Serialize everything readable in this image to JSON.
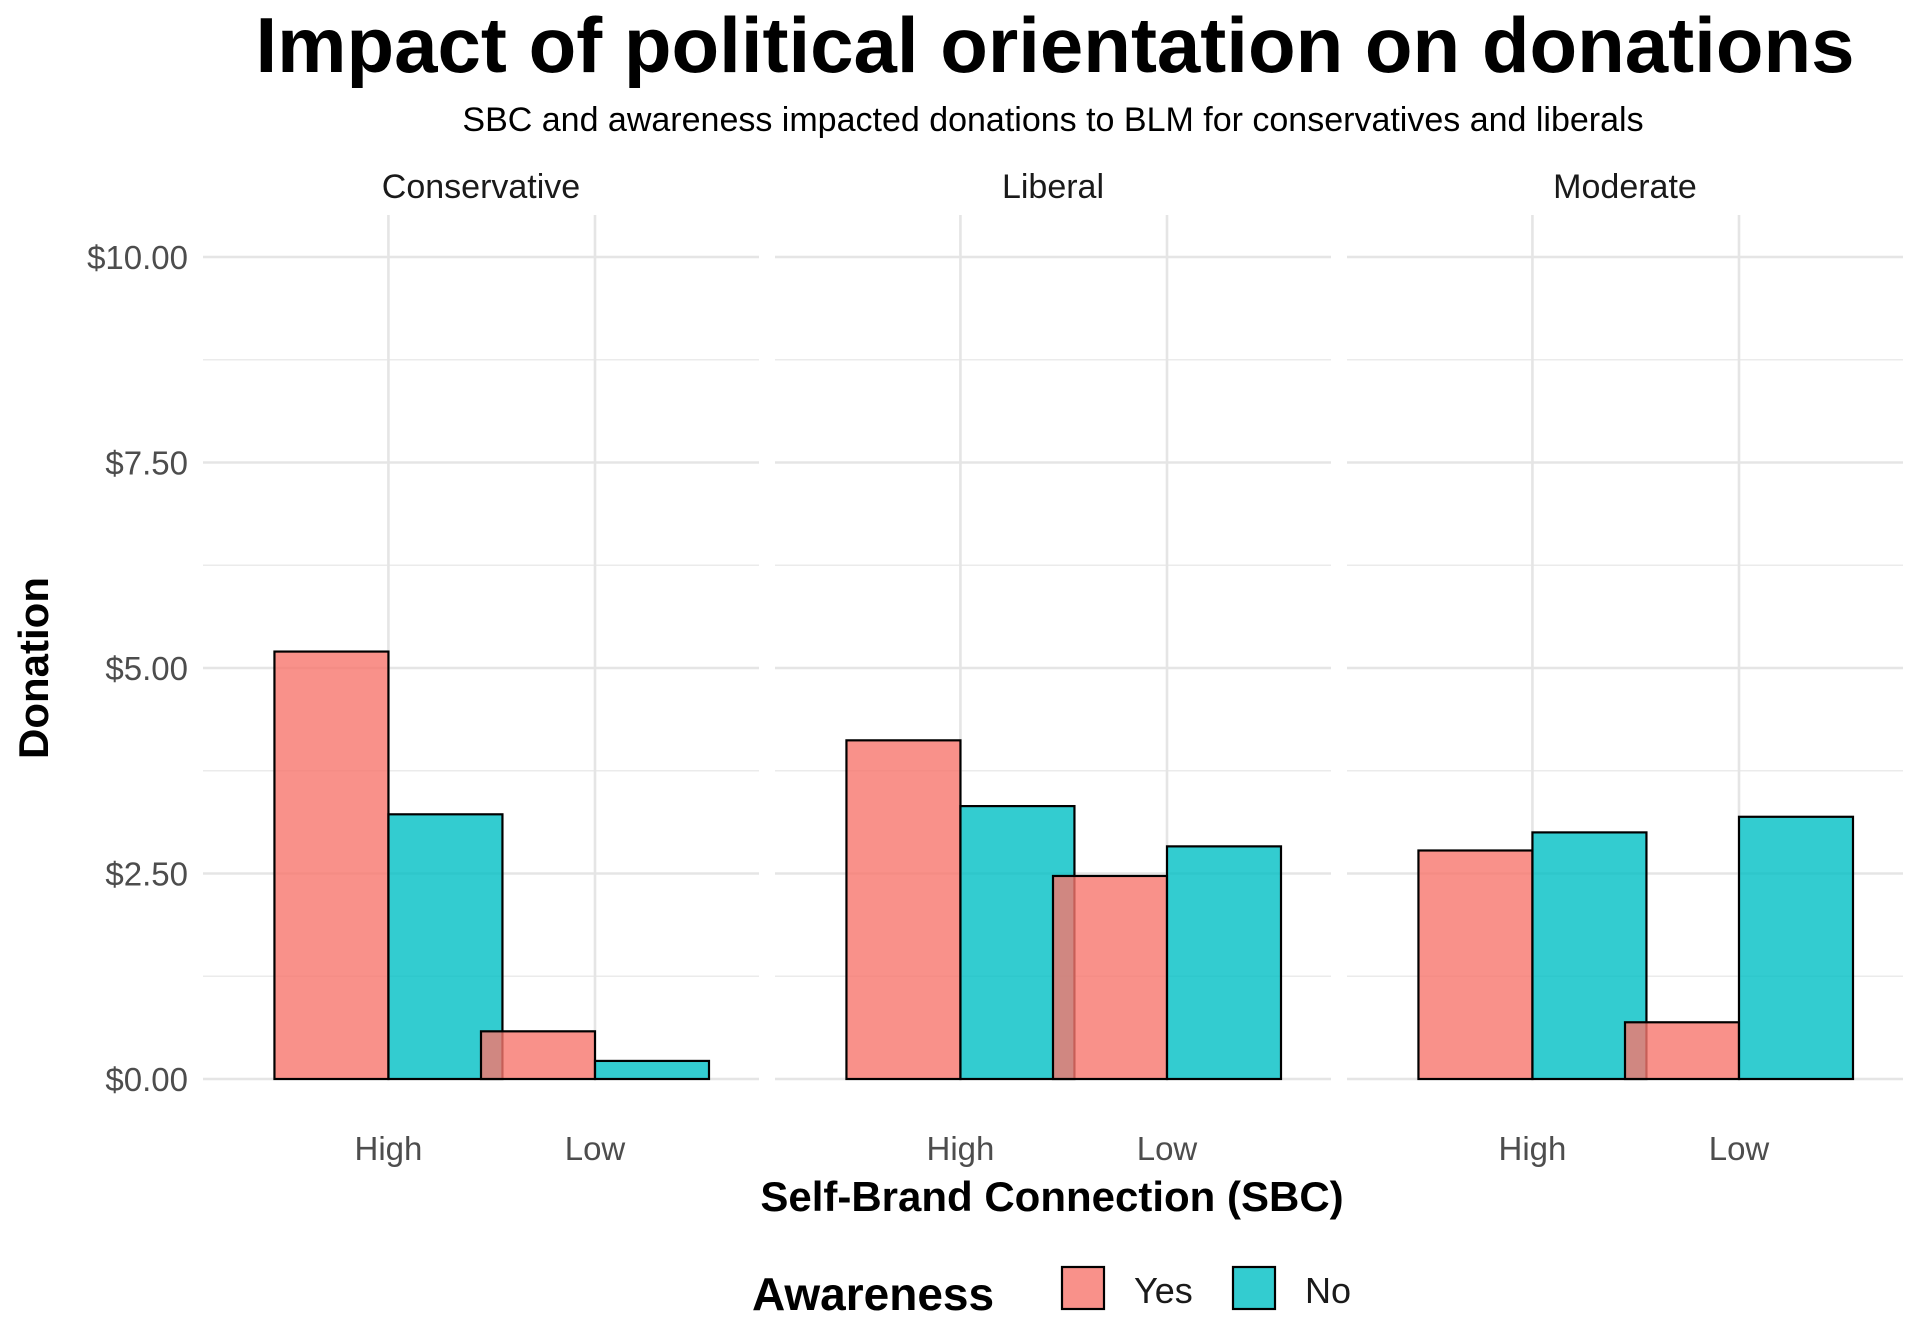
{
  "chart_data": {
    "type": "bar",
    "title": "Impact of political orientation on donations",
    "subtitle": "SBC and awareness impacted donations to BLM for conservatives and liberals",
    "xlabel": "Self-Brand Connection (SBC)",
    "ylabel": "Donation",
    "ylim": [
      0,
      10.5
    ],
    "y_ticks": [
      {
        "value": 0,
        "label": "$0.00"
      },
      {
        "value": 2.5,
        "label": "$2.50"
      },
      {
        "value": 5,
        "label": "$5.00"
      },
      {
        "value": 7.5,
        "label": "$7.50"
      },
      {
        "value": 10,
        "label": "$10.00"
      }
    ],
    "categories": [
      "High",
      "Low"
    ],
    "grid": true,
    "legend": {
      "title": "Awareness",
      "placement": "bottom",
      "entries": [
        {
          "name": "Yes",
          "color": "#F8766D"
        },
        {
          "name": "No",
          "color": "#00BFC4"
        }
      ]
    },
    "facets": [
      {
        "name": "Conservative",
        "series": [
          {
            "name": "Yes",
            "values": [
              5.2,
              0.58
            ]
          },
          {
            "name": "No",
            "values": [
              3.22,
              0.22
            ]
          }
        ]
      },
      {
        "name": "Liberal",
        "series": [
          {
            "name": "Yes",
            "values": [
              4.12,
              2.47
            ]
          },
          {
            "name": "No",
            "values": [
              3.32,
              2.83
            ]
          }
        ]
      },
      {
        "name": "Moderate",
        "series": [
          {
            "name": "Yes",
            "values": [
              2.78,
              0.69
            ]
          },
          {
            "name": "No",
            "values": [
              3.0,
              3.19
            ]
          }
        ]
      }
    ]
  }
}
